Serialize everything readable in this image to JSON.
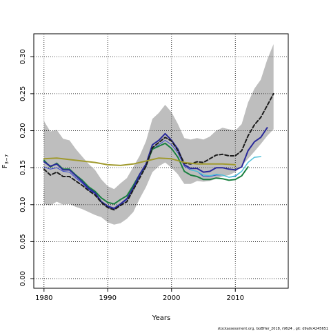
{
  "chart_data": {
    "type": "line",
    "xlabel": "Years",
    "ylabel": "F",
    "ylabel_sub": "3−7",
    "xlim": [
      1978.4,
      2018.3
    ],
    "ylim": [
      -0.013,
      0.331
    ],
    "x_ticks": [
      1980,
      1990,
      2000,
      2010
    ],
    "y_ticks": [
      0.0,
      0.05,
      0.1,
      0.15,
      0.2,
      0.25,
      0.3
    ],
    "y_tick_labels": [
      "0.00",
      "0.05",
      "0.10",
      "0.15",
      "0.20",
      "0.25",
      "0.30"
    ],
    "grid": true,
    "band": {
      "fill": "#bebebe",
      "x": [
        1980,
        1981,
        1982,
        1983,
        1984,
        1985,
        1986,
        1987,
        1988,
        1989,
        1990,
        1991,
        1992,
        1993,
        1994,
        1995,
        1996,
        1997,
        1998,
        1999,
        2000,
        2001,
        2002,
        2003,
        2004,
        2005,
        2006,
        2007,
        2008,
        2009,
        2010,
        2011,
        2012,
        2013,
        2014,
        2015,
        2016
      ],
      "upper": [
        0.213,
        0.199,
        0.201,
        0.189,
        0.187,
        0.175,
        0.165,
        0.155,
        0.147,
        0.134,
        0.125,
        0.121,
        0.129,
        0.136,
        0.151,
        0.166,
        0.186,
        0.216,
        0.224,
        0.235,
        0.225,
        0.209,
        0.19,
        0.188,
        0.19,
        0.188,
        0.192,
        0.2,
        0.204,
        0.202,
        0.2,
        0.209,
        0.238,
        0.257,
        0.269,
        0.296,
        0.317
      ],
      "lower": [
        0.101,
        0.099,
        0.104,
        0.1,
        0.101,
        0.097,
        0.094,
        0.09,
        0.086,
        0.083,
        0.076,
        0.073,
        0.075,
        0.081,
        0.09,
        0.108,
        0.124,
        0.144,
        0.152,
        0.157,
        0.15,
        0.141,
        0.128,
        0.128,
        0.132,
        0.131,
        0.132,
        0.135,
        0.138,
        0.14,
        0.144,
        0.152,
        0.162,
        0.172,
        0.182,
        0.193,
        0.202
      ]
    },
    "series": [
      {
        "color": "#3344cc",
        "dash": "",
        "width": 1,
        "x": [
          1980,
          1981,
          1982,
          1983,
          1984,
          1985,
          1986,
          1987,
          1988,
          1989,
          1990,
          1991,
          1992,
          1993,
          1994,
          1995,
          1996,
          1997,
          1998,
          1999,
          2000,
          2001,
          2002,
          2003,
          2004,
          2005,
          2006,
          2007,
          2008,
          2009,
          2010,
          2011
        ],
        "y": [
          0.151,
          0.148,
          0.15,
          0.145,
          0.144,
          0.136,
          0.129,
          0.12,
          0.115,
          0.103,
          0.097,
          0.094,
          0.1,
          0.107,
          0.121,
          0.138,
          0.151,
          0.175,
          0.181,
          0.187,
          0.181,
          0.17,
          0.152,
          0.147,
          0.145,
          0.138,
          0.138,
          0.14,
          0.14,
          0.137,
          0.138,
          0.145
        ]
      },
      {
        "color": "#4fc0d8",
        "dash": "",
        "width": 1.5,
        "x": [
          2003,
          2004,
          2005,
          2006,
          2007,
          2008,
          2009,
          2010,
          2011,
          2012,
          2013,
          2014
        ],
        "y": [
          0.147,
          0.145,
          0.14,
          0.139,
          0.141,
          0.14,
          0.137,
          0.139,
          0.145,
          0.157,
          0.164,
          0.165
        ]
      },
      {
        "color": "#1a8040",
        "dash": "",
        "width": 2,
        "x": [
          1980,
          1981,
          1982,
          1983,
          1984,
          1985,
          1986,
          1987,
          1988,
          1989,
          1990,
          1991,
          1992,
          1993,
          1994,
          1995,
          1996,
          1997,
          1998,
          1999,
          2000,
          2001,
          2002,
          2003,
          2004,
          2005,
          2006,
          2007,
          2008,
          2009,
          2010,
          2011,
          2012
        ],
        "y": [
          0.16,
          0.151,
          0.156,
          0.148,
          0.148,
          0.14,
          0.133,
          0.124,
          0.118,
          0.109,
          0.103,
          0.101,
          0.107,
          0.112,
          0.126,
          0.141,
          0.153,
          0.175,
          0.179,
          0.183,
          0.176,
          0.164,
          0.145,
          0.14,
          0.138,
          0.134,
          0.134,
          0.136,
          0.135,
          0.133,
          0.134,
          0.139,
          0.151
        ]
      },
      {
        "color": "#2a2a9a",
        "dash": "",
        "width": 2,
        "x": [
          1980,
          1981,
          1982,
          1983,
          1984,
          1985,
          1986,
          1987,
          1988,
          1989,
          1990,
          1991,
          1992,
          1993,
          1994,
          1995,
          1996,
          1997,
          1998,
          1999,
          2000,
          2001,
          2002,
          2003,
          2004,
          2005,
          2006,
          2007,
          2008,
          2009,
          2010,
          2011,
          2012,
          2013,
          2014,
          2015
        ],
        "y": [
          0.158,
          0.152,
          0.155,
          0.147,
          0.147,
          0.139,
          0.131,
          0.122,
          0.116,
          0.104,
          0.098,
          0.095,
          0.101,
          0.108,
          0.123,
          0.141,
          0.155,
          0.181,
          0.187,
          0.196,
          0.187,
          0.175,
          0.154,
          0.149,
          0.149,
          0.144,
          0.145,
          0.15,
          0.15,
          0.148,
          0.147,
          0.151,
          0.173,
          0.185,
          0.191,
          0.204
        ]
      },
      {
        "color": "#1c1c1c",
        "dash": "5,3",
        "width": 2,
        "x": [
          1980,
          1981,
          1982,
          1983,
          1984,
          1985,
          1986,
          1987,
          1988,
          1989,
          1990,
          1991,
          1992,
          1993,
          1994,
          1995,
          1996,
          1997,
          1998,
          1999,
          2000,
          2001,
          2002,
          2003,
          2004,
          2005,
          2006,
          2007,
          2008,
          2009,
          2010,
          2011,
          2012,
          2013,
          2014,
          2015,
          2016
        ],
        "y": [
          0.148,
          0.14,
          0.144,
          0.138,
          0.138,
          0.132,
          0.126,
          0.119,
          0.113,
          0.103,
          0.096,
          0.093,
          0.099,
          0.104,
          0.12,
          0.136,
          0.152,
          0.177,
          0.184,
          0.191,
          0.186,
          0.173,
          0.156,
          0.155,
          0.158,
          0.157,
          0.162,
          0.167,
          0.168,
          0.166,
          0.166,
          0.173,
          0.193,
          0.208,
          0.218,
          0.234,
          0.25
        ]
      },
      {
        "color": "#a09a2e",
        "dash": "",
        "width": 2,
        "x": [
          1980,
          1982,
          1984,
          1986,
          1988,
          1990,
          1992,
          1994,
          1996,
          1998,
          2000,
          2002,
          2004,
          2006,
          2008,
          2010
        ],
        "y": [
          0.162,
          0.163,
          0.161,
          0.159,
          0.157,
          0.154,
          0.153,
          0.155,
          0.159,
          0.163,
          0.162,
          0.157,
          0.155,
          0.155,
          0.155,
          0.154
        ]
      }
    ]
  },
  "footer_text": "stockassessment.org, GoBHer_2018, r9624 , git: d9a0c4245651"
}
